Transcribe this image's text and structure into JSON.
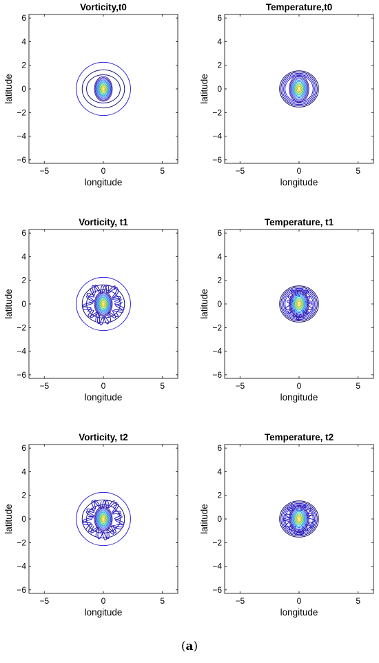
{
  "figure_caption": {
    "open": "(",
    "letter": "a",
    "close": ")"
  },
  "chart_data": [
    {
      "type": "contour",
      "title": "Vorticity,t0",
      "xlabel": "longitude",
      "ylabel": "latitude",
      "xlim": [
        -6.3,
        6.3
      ],
      "ylim": [
        -6.3,
        6.3
      ],
      "xticks": [
        -5,
        0,
        5
      ],
      "yticks": [
        -6,
        -4,
        -2,
        0,
        2,
        4,
        6
      ],
      "grid": false,
      "field": "vorticity",
      "time": "t0",
      "outer_radius": 2.3,
      "perturbation": 0
    },
    {
      "type": "contour",
      "title": "Temperature,t0",
      "xlabel": "longitude",
      "ylabel": "latitude",
      "xlim": [
        -6.3,
        6.3
      ],
      "ylim": [
        -6.3,
        6.3
      ],
      "xticks": [
        -5,
        0,
        5
      ],
      "yticks": [
        -6,
        -4,
        -2,
        0,
        2,
        4,
        6
      ],
      "grid": false,
      "field": "temperature",
      "time": "t0",
      "outer_radius": 1.65,
      "perturbation": 0
    },
    {
      "type": "contour",
      "title": "Vorticity, t1",
      "xlabel": "longitude",
      "ylabel": "latitude",
      "xlim": [
        -6.3,
        6.3
      ],
      "ylim": [
        -6.3,
        6.3
      ],
      "xticks": [
        -5,
        0,
        5
      ],
      "yticks": [
        -6,
        -4,
        -2,
        0,
        2,
        4,
        6
      ],
      "grid": false,
      "field": "vorticity",
      "time": "t1",
      "outer_radius": 2.3,
      "perturbation": 1
    },
    {
      "type": "contour",
      "title": "Temperature, t1",
      "xlabel": "longitude",
      "ylabel": "latitude",
      "xlim": [
        -6.3,
        6.3
      ],
      "ylim": [
        -6.3,
        6.3
      ],
      "xticks": [
        -5,
        0,
        5
      ],
      "yticks": [
        -6,
        -4,
        -2,
        0,
        2,
        4,
        6
      ],
      "grid": false,
      "field": "temperature",
      "time": "t1",
      "outer_radius": 1.65,
      "perturbation": 1
    },
    {
      "type": "contour",
      "title": "Vorticity, t2",
      "xlabel": "longitude",
      "ylabel": "latitude",
      "xlim": [
        -6.3,
        6.3
      ],
      "ylim": [
        -6.3,
        6.3
      ],
      "xticks": [
        -5,
        0,
        5
      ],
      "yticks": [
        -6,
        -4,
        -2,
        0,
        2,
        4,
        6
      ],
      "grid": false,
      "field": "vorticity",
      "time": "t2",
      "outer_radius": 2.3,
      "perturbation": 2
    },
    {
      "type": "contour",
      "title": "Temperature, t2",
      "xlabel": "longitude",
      "ylabel": "latitude",
      "xlim": [
        -6.3,
        6.3
      ],
      "ylim": [
        -6.3,
        6.3
      ],
      "xticks": [
        -5,
        0,
        5
      ],
      "yticks": [
        -6,
        -4,
        -2,
        0,
        2,
        4,
        6
      ],
      "grid": false,
      "field": "temperature",
      "time": "t2",
      "outer_radius": 1.65,
      "perturbation": 2
    }
  ],
  "colors": {
    "outer_contour": "#2b1fd6",
    "colormap": [
      "#3e26a8",
      "#4742e0",
      "#2f7bf5",
      "#18a8d9",
      "#2cc0a0",
      "#8fca3b",
      "#e8ba2f",
      "#f9de1e"
    ]
  }
}
